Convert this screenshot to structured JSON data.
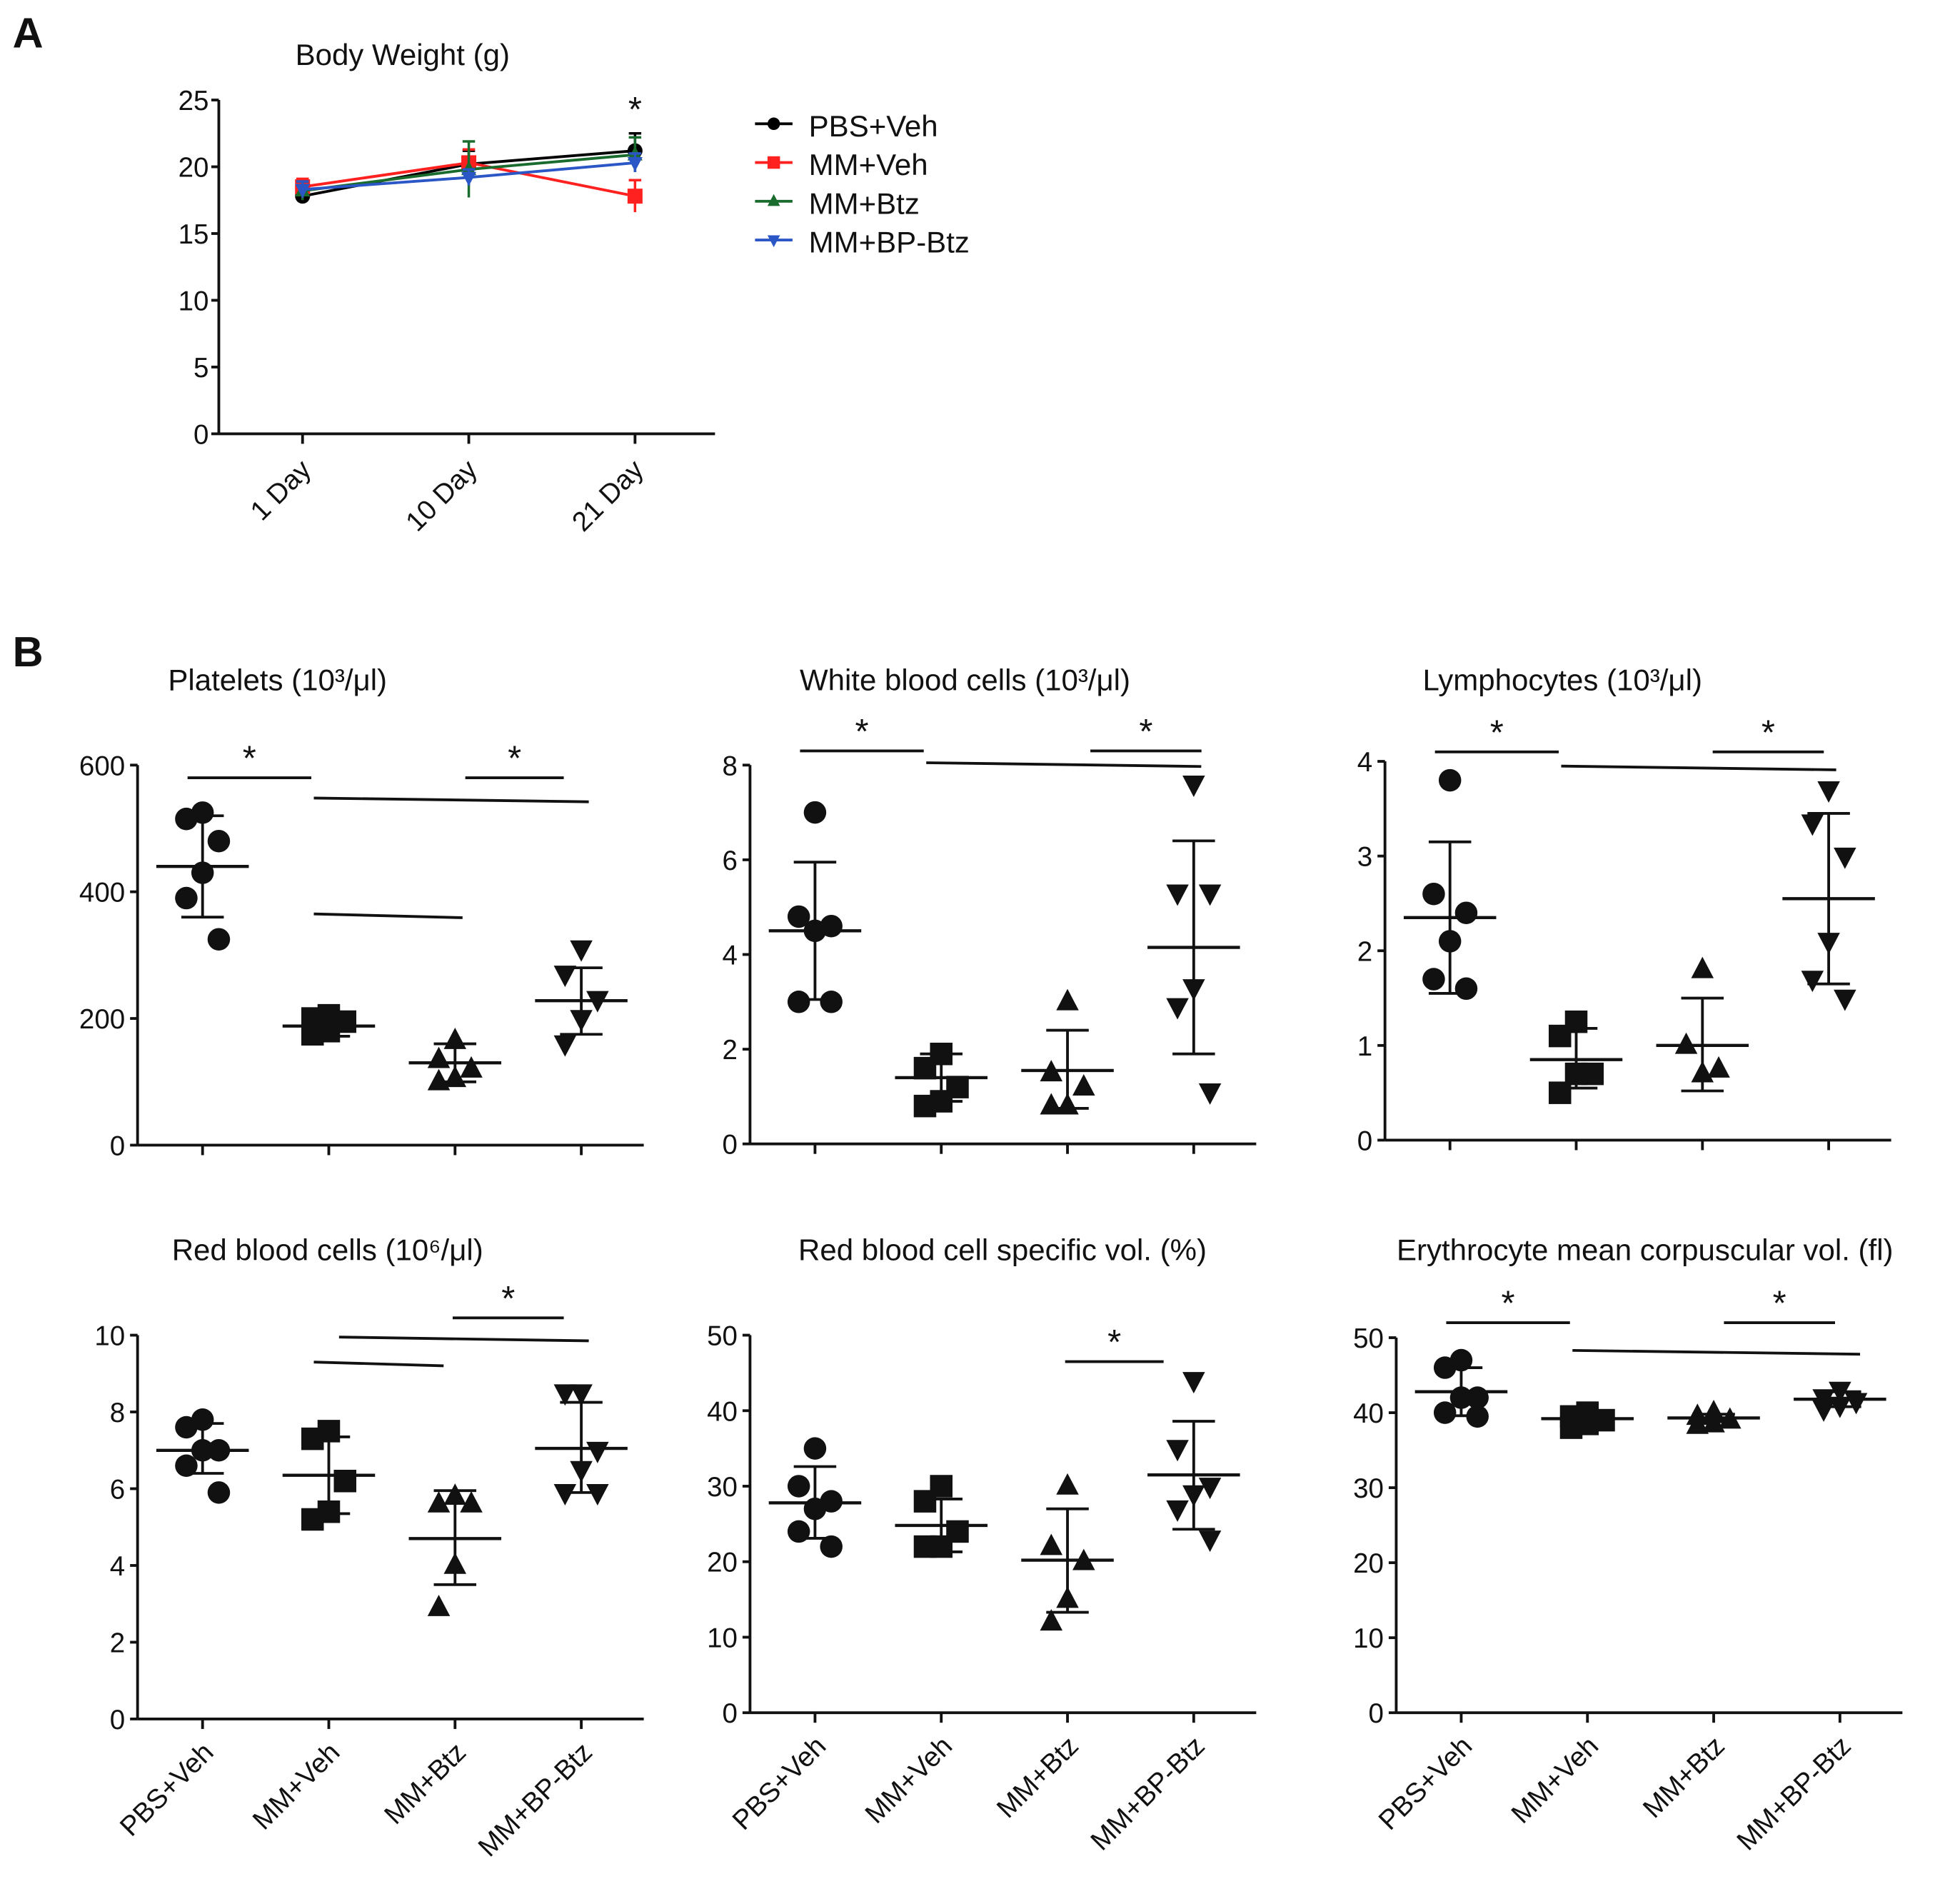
{
  "figure": {
    "letter_a": "A",
    "letter_b": "B"
  },
  "groups": [
    "PBS+Veh",
    "MM+Veh",
    "MM+Btz",
    "MM+BP-Btz"
  ],
  "chart_data": [
    {
      "type": "line",
      "title": "Body Weight (g)",
      "categories": [
        "1 Day",
        "10 Day",
        "21 Day"
      ],
      "ylim": [
        0,
        25
      ],
      "yticks": [
        0,
        5,
        10,
        15,
        20,
        25
      ],
      "significance": [
        {
          "category": 2,
          "label": "*"
        }
      ],
      "series": [
        {
          "name": "PBS+Veh",
          "color": "#000000",
          "marker": "circle",
          "values": [
            17.8,
            20.2,
            21.2
          ],
          "errors": [
            0.5,
            1.0,
            1.3
          ]
        },
        {
          "name": "MM+Veh",
          "color": "#ff2020",
          "marker": "square",
          "values": [
            18.5,
            20.3,
            17.8
          ],
          "errors": [
            0.6,
            1.0,
            1.2
          ]
        },
        {
          "name": "MM+Btz",
          "color": "#1a6b2e",
          "marker": "triangle-up",
          "values": [
            18.2,
            19.8,
            20.9
          ],
          "errors": [
            0.7,
            2.1,
            1.3
          ]
        },
        {
          "name": "MM+BP-Btz",
          "color": "#2a56c6",
          "marker": "triangle-down",
          "values": [
            18.3,
            19.2,
            20.3
          ],
          "errors": [
            0.6,
            0.6,
            0.7
          ]
        }
      ]
    },
    {
      "type": "scatter",
      "title": "Platelets (10³/μl)",
      "ylim": [
        0,
        600
      ],
      "yticks": [
        0,
        200,
        400,
        600
      ],
      "groups": [
        {
          "points": [
            525,
            515,
            480,
            430,
            390,
            325
          ],
          "mean": 440,
          "err": [
            360,
            520
          ]
        },
        {
          "points": [
            205,
            200,
            195,
            180,
            175
          ],
          "mean": 188,
          "err": [
            172,
            205
          ]
        },
        {
          "points": [
            165,
            135,
            120,
            105,
            100
          ],
          "mean": 130,
          "err": [
            100,
            160
          ]
        },
        {
          "points": [
            310,
            270,
            230,
            200,
            160
          ],
          "mean": 228,
          "err": [
            175,
            280
          ]
        }
      ],
      "significance": [
        {
          "from": 0,
          "to": 1,
          "y": 580,
          "label": "*"
        },
        {
          "from": 2.2,
          "to": 3,
          "y": 580,
          "label": "*"
        },
        {
          "from": 1,
          "to": 3,
          "y": 548,
          "label": ""
        },
        {
          "from": 1,
          "to": 2,
          "y": 365,
          "label": ""
        }
      ]
    },
    {
      "type": "scatter",
      "title": "White blood cells (10³/μl)",
      "ylim": [
        0,
        8
      ],
      "yticks": [
        0,
        2,
        4,
        6,
        8
      ],
      "groups": [
        {
          "points": [
            7.0,
            4.8,
            4.6,
            4.5,
            3.0,
            3.0
          ],
          "mean": 4.5,
          "err": [
            3.05,
            5.95
          ]
        },
        {
          "points": [
            1.9,
            1.6,
            1.2,
            0.9,
            0.8
          ],
          "mean": 1.4,
          "err": [
            0.9,
            1.9
          ]
        },
        {
          "points": [
            3.0,
            1.5,
            1.2,
            0.8,
            0.8
          ],
          "mean": 1.55,
          "err": [
            0.75,
            2.4
          ]
        },
        {
          "points": [
            7.6,
            5.3,
            5.3,
            3.3,
            2.9,
            1.1
          ],
          "mean": 4.15,
          "err": [
            1.9,
            6.4
          ]
        }
      ],
      "significance": [
        {
          "from": 0,
          "to": 1,
          "y": 8.3,
          "label": "*"
        },
        {
          "from": 2.3,
          "to": 3.2,
          "y": 8.3,
          "label": "*"
        },
        {
          "from": 1,
          "to": 3,
          "y": 8.05,
          "label": ""
        }
      ]
    },
    {
      "type": "scatter",
      "title": "Lymphocytes (10³/μl)",
      "ylim": [
        0,
        4
      ],
      "yticks": [
        0,
        1,
        2,
        3,
        4
      ],
      "groups": [
        {
          "points": [
            3.8,
            2.6,
            2.4,
            2.1,
            1.7,
            1.6
          ],
          "mean": 2.35,
          "err": [
            1.55,
            3.15
          ]
        },
        {
          "points": [
            1.25,
            1.1,
            0.7,
            0.7,
            0.5
          ],
          "mean": 0.85,
          "err": [
            0.55,
            1.18
          ]
        },
        {
          "points": [
            1.8,
            1.0,
            0.75,
            0.7
          ],
          "mean": 1.0,
          "err": [
            0.52,
            1.5
          ]
        },
        {
          "points": [
            3.7,
            3.35,
            3.0,
            2.1,
            1.7,
            1.5
          ],
          "mean": 2.55,
          "err": [
            1.65,
            3.45
          ]
        }
      ],
      "significance": [
        {
          "from": 0,
          "to": 1,
          "y": 4.1,
          "label": "*"
        },
        {
          "from": 2.2,
          "to": 3.1,
          "y": 4.1,
          "label": "*"
        },
        {
          "from": 1,
          "to": 3,
          "y": 3.95,
          "label": ""
        }
      ]
    },
    {
      "type": "scatter",
      "title": "Red blood cells (10⁶/μl)",
      "ylim": [
        0,
        10
      ],
      "yticks": [
        0,
        2,
        4,
        6,
        8,
        10
      ],
      "groups": [
        {
          "points": [
            7.8,
            7.6,
            7.0,
            7.0,
            6.6,
            5.9
          ],
          "mean": 7.0,
          "err": [
            6.4,
            7.7
          ]
        },
        {
          "points": [
            7.5,
            7.3,
            6.2,
            5.4,
            5.2
          ],
          "mean": 6.35,
          "err": [
            5.35,
            7.35
          ]
        },
        {
          "points": [
            5.8,
            5.6,
            5.6,
            4.0,
            2.9
          ],
          "mean": 4.7,
          "err": [
            3.5,
            5.95
          ]
        },
        {
          "points": [
            8.5,
            8.5,
            7.0,
            6.5,
            5.9,
            5.9
          ],
          "mean": 7.05,
          "err": [
            5.9,
            8.25
          ]
        }
      ],
      "significance": [
        {
          "from": 2.1,
          "to": 3,
          "y": 10.45,
          "label": "*"
        },
        {
          "from": 1.2,
          "to": 3,
          "y": 9.95,
          "label": ""
        },
        {
          "from": 1,
          "to": 1.85,
          "y": 9.3,
          "label": ""
        }
      ]
    },
    {
      "type": "scatter",
      "title": "Red blood cell specific vol. (%)",
      "ylim": [
        0,
        50
      ],
      "yticks": [
        0,
        10,
        20,
        30,
        40,
        50
      ],
      "groups": [
        {
          "points": [
            35,
            30,
            28,
            27,
            24,
            22
          ],
          "mean": 27.8,
          "err": [
            23.1,
            32.6
          ]
        },
        {
          "points": [
            30,
            28,
            24,
            22,
            22
          ],
          "mean": 24.8,
          "err": [
            21.3,
            28.3
          ]
        },
        {
          "points": [
            30,
            22,
            20,
            15,
            12
          ],
          "mean": 20.2,
          "err": [
            13.3,
            27
          ]
        },
        {
          "points": [
            44,
            35,
            30,
            29,
            27,
            23
          ],
          "mean": 31.5,
          "err": [
            24.3,
            38.6
          ]
        }
      ],
      "significance": [
        {
          "from": 2.1,
          "to": 2.9,
          "y": 46.5,
          "label": "*"
        }
      ]
    },
    {
      "type": "scatter",
      "title": "Erythrocyte mean corpuscular vol. (fl)",
      "ylim": [
        0,
        50
      ],
      "yticks": [
        0,
        10,
        20,
        30,
        40,
        50
      ],
      "groups": [
        {
          "points": [
            47,
            46,
            42,
            42,
            40,
            39.5
          ],
          "mean": 42.8,
          "err": [
            39.6,
            46
          ]
        },
        {
          "points": [
            40,
            39.5,
            39,
            38.5,
            38
          ],
          "mean": 39.2,
          "err": [
            38.2,
            40.2
          ]
        },
        {
          "points": [
            40,
            39.5,
            39,
            38.5,
            38.3
          ],
          "mean": 39.3,
          "err": [
            38.8,
            39.8
          ]
        },
        {
          "points": [
            43,
            42,
            41.5,
            41,
            40.5
          ],
          "mean": 41.8,
          "err": [
            40.8,
            42.8
          ]
        }
      ],
      "significance": [
        {
          "from": 0,
          "to": 1,
          "y": 52,
          "label": "*"
        },
        {
          "from": 2.2,
          "to": 3.1,
          "y": 52,
          "label": "*"
        },
        {
          "from": 1,
          "to": 3.1,
          "y": 48.3,
          "label": ""
        }
      ]
    }
  ]
}
